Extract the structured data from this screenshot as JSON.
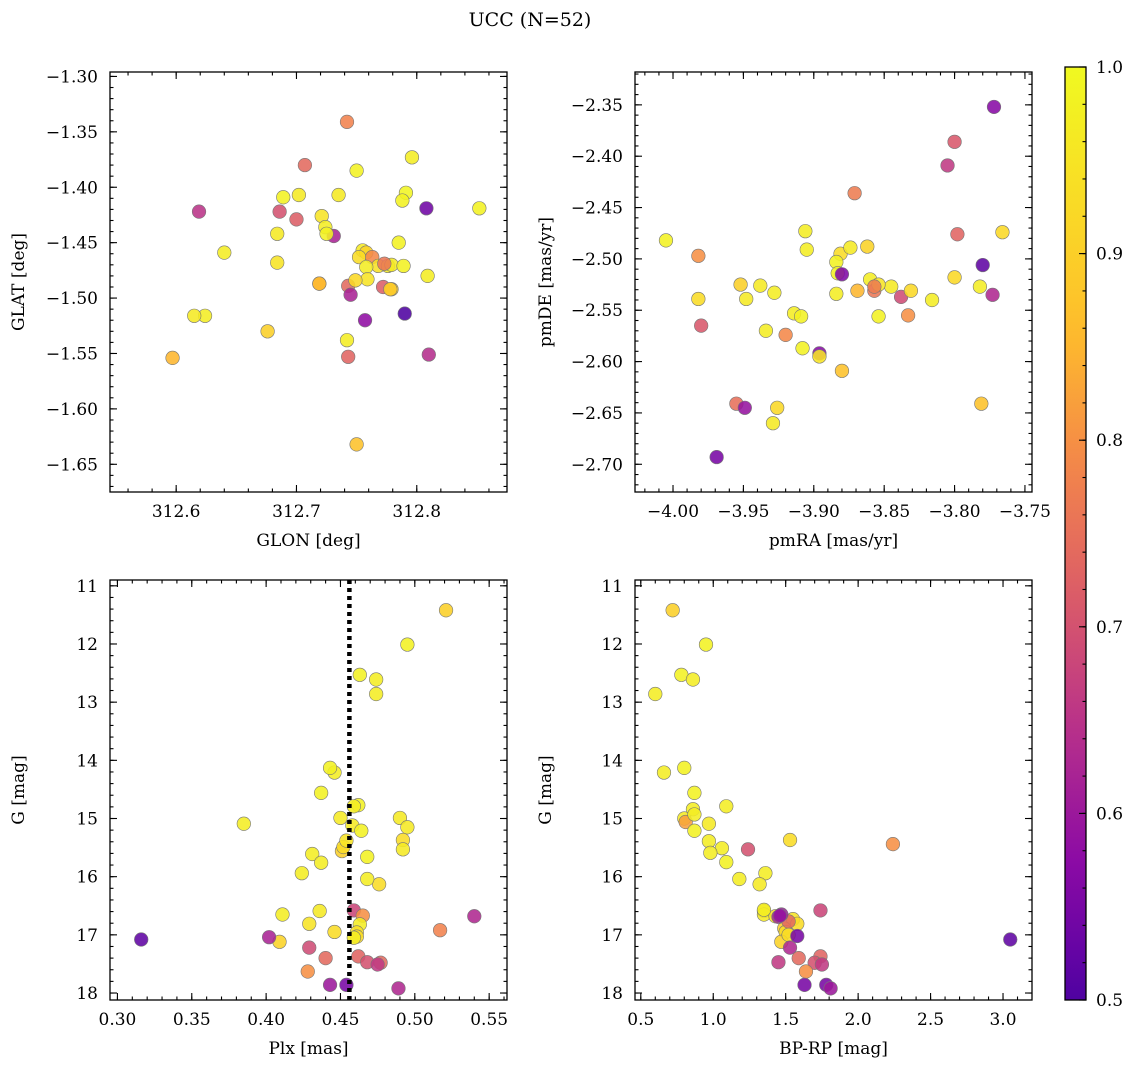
{
  "figure": {
    "title": "UCC (N=52)"
  },
  "colorbar": {
    "colormap": "plasma",
    "range": [
      0.5,
      1.0
    ],
    "ticks": [
      "0.5",
      "0.6",
      "0.7",
      "0.8",
      "0.9",
      "1.0"
    ]
  },
  "chart_data": [
    {
      "type": "scatter",
      "xlabel": "GLON [deg]",
      "ylabel": "GLAT [deg]",
      "xlim": [
        312.545,
        312.875
      ],
      "ylim": [
        -1.675,
        -1.296
      ],
      "xticks": [
        "312.6",
        "312.7",
        "312.8"
      ],
      "yticks": [
        "-1.30",
        "-1.35",
        "-1.40",
        "-1.45",
        "-1.50",
        "-1.55",
        "-1.60",
        "-1.65"
      ],
      "x": [
        312.742,
        312.707,
        312.796,
        312.791,
        312.852,
        312.619,
        312.689,
        312.702,
        312.75,
        312.735,
        312.731,
        312.686,
        312.7,
        312.721,
        312.724,
        312.725,
        312.755,
        312.758,
        312.752,
        312.763,
        312.768,
        312.776,
        312.779,
        312.789,
        312.772,
        312.758,
        312.759,
        312.684,
        312.64,
        312.684,
        312.624,
        312.676,
        312.719,
        312.743,
        312.779,
        312.785,
        312.788,
        312.809,
        312.808,
        312.79,
        312.745,
        312.757,
        312.773,
        312.719,
        312.742,
        312.75,
        312.597,
        312.615,
        312.778,
        312.749,
        312.743,
        312.81
      ],
      "y": [
        -1.341,
        -1.38,
        -1.373,
        -1.405,
        -1.419,
        -1.422,
        -1.409,
        -1.407,
        -1.385,
        -1.407,
        -1.444,
        -1.422,
        -1.429,
        -1.426,
        -1.436,
        -1.442,
        -1.457,
        -1.459,
        -1.463,
        -1.463,
        -1.471,
        -1.471,
        -1.47,
        -1.471,
        -1.49,
        -1.472,
        -1.483,
        -1.442,
        -1.459,
        -1.468,
        -1.516,
        -1.53,
        -1.487,
        -1.489,
        -1.492,
        -1.45,
        -1.412,
        -1.48,
        -1.419,
        -1.514,
        -1.497,
        -1.52,
        -1.469,
        -1.487,
        -1.538,
        -1.632,
        -1.554,
        -1.516,
        -1.492,
        -1.484,
        -1.553,
        -1.551
      ],
      "c": [
        0.78,
        0.74,
        0.97,
        0.99,
        0.98,
        0.65,
        0.98,
        0.96,
        0.98,
        0.96,
        0.62,
        0.7,
        0.72,
        0.95,
        0.97,
        0.98,
        0.96,
        0.91,
        0.93,
        0.79,
        0.94,
        0.97,
        0.96,
        0.98,
        0.72,
        0.97,
        0.95,
        0.96,
        0.97,
        0.95,
        0.97,
        0.9,
        0.88,
        0.74,
        0.9,
        0.98,
        0.98,
        0.97,
        0.54,
        0.5,
        0.62,
        0.58,
        0.76,
        0.85,
        0.97,
        0.87,
        0.85,
        0.96,
        0.89,
        0.92,
        0.73,
        0.64
      ]
    },
    {
      "type": "scatter",
      "xlabel": "pmRA [mas/yr]",
      "ylabel": "pmDE [mas/yr]",
      "xlim": [
        -4.027,
        -3.745
      ],
      "ylim": [
        -2.727,
        -2.318
      ],
      "xticks": [
        "-4.00",
        "-3.95",
        "-3.90",
        "-3.85",
        "-3.80",
        "-3.75"
      ],
      "yticks": [
        "-2.35",
        "-2.40",
        "-2.45",
        "-2.50",
        "-2.55",
        "-2.60",
        "-2.65",
        "-2.70"
      ],
      "x": [
        -3.772,
        -3.8,
        -3.805,
        -3.871,
        -3.798,
        -4.005,
        -3.766,
        -3.982,
        -3.906,
        -3.905,
        -3.881,
        -3.874,
        -3.884,
        -3.862,
        -3.883,
        -3.88,
        -3.86,
        -3.845,
        -3.857,
        -3.854,
        -3.838,
        -3.833,
        -3.831,
        -3.816,
        -3.8,
        -3.78,
        -3.782,
        -3.773,
        -3.982,
        -3.98,
        -3.952,
        -3.948,
        -3.938,
        -3.928,
        -3.914,
        -3.909,
        -3.884,
        -3.854,
        -3.92,
        -3.934,
        -3.908,
        -3.896,
        -3.896,
        -3.88,
        -3.955,
        -3.926,
        -3.929,
        -3.949,
        -3.969,
        -3.781,
        -3.869,
        -3.857
      ],
      "y": [
        -2.352,
        -2.386,
        -2.409,
        -2.436,
        -2.476,
        -2.482,
        -2.474,
        -2.497,
        -2.473,
        -2.491,
        -2.495,
        -2.489,
        -2.503,
        -2.488,
        -2.514,
        -2.515,
        -2.52,
        -2.527,
        -2.531,
        -2.525,
        -2.537,
        -2.555,
        -2.531,
        -2.54,
        -2.518,
        -2.506,
        -2.527,
        -2.535,
        -2.539,
        -2.565,
        -2.525,
        -2.539,
        -2.526,
        -2.533,
        -2.553,
        -2.556,
        -2.534,
        -2.556,
        -2.574,
        -2.57,
        -2.587,
        -2.592,
        -2.595,
        -2.609,
        -2.641,
        -2.645,
        -2.66,
        -2.645,
        -2.693,
        -2.641,
        -2.531,
        -2.527
      ],
      "c": [
        0.57,
        0.71,
        0.66,
        0.77,
        0.73,
        0.98,
        0.92,
        0.8,
        0.97,
        0.97,
        0.93,
        0.96,
        0.98,
        0.91,
        0.98,
        0.56,
        0.97,
        0.96,
        0.76,
        0.95,
        0.69,
        0.8,
        0.92,
        0.97,
        0.92,
        0.52,
        0.97,
        0.63,
        0.93,
        0.71,
        0.9,
        0.96,
        0.96,
        0.97,
        0.97,
        0.98,
        0.97,
        0.98,
        0.79,
        0.97,
        0.98,
        0.57,
        0.95,
        0.87,
        0.75,
        0.92,
        0.96,
        0.59,
        0.55,
        0.87,
        0.85,
        0.77
      ]
    },
    {
      "type": "scatter",
      "xlabel": "Plx [mas]",
      "ylabel": "G [mag]",
      "xlim": [
        0.295,
        0.562
      ],
      "ylim": [
        18.12,
        10.9
      ],
      "xticks": [
        "0.30",
        "0.35",
        "0.40",
        "0.45",
        "0.50",
        "0.55"
      ],
      "yticks": [
        "11",
        "12",
        "13",
        "14",
        "15",
        "16",
        "17",
        "18"
      ],
      "vline": 0.456,
      "x": [
        0.521,
        0.495,
        0.463,
        0.474,
        0.474,
        0.446,
        0.443,
        0.437,
        0.49,
        0.495,
        0.462,
        0.459,
        0.45,
        0.385,
        0.458,
        0.464,
        0.492,
        0.492,
        0.451,
        0.431,
        0.437,
        0.468,
        0.424,
        0.476,
        0.468,
        0.452,
        0.454,
        0.459,
        0.465,
        0.436,
        0.411,
        0.429,
        0.54,
        0.463,
        0.461,
        0.517,
        0.409,
        0.446,
        0.461,
        0.459,
        0.402,
        0.429,
        0.316,
        0.44,
        0.462,
        0.468,
        0.477,
        0.475,
        0.428,
        0.443,
        0.454,
        0.489
      ],
      "y": [
        11.42,
        12.01,
        12.53,
        12.61,
        12.86,
        14.21,
        14.13,
        14.56,
        14.99,
        15.15,
        14.77,
        14.79,
        14.99,
        15.09,
        15.12,
        15.21,
        15.37,
        15.53,
        15.56,
        15.61,
        15.76,
        15.66,
        15.94,
        16.13,
        16.04,
        15.49,
        15.38,
        16.58,
        16.67,
        16.59,
        16.65,
        16.81,
        16.68,
        16.82,
        16.96,
        16.92,
        17.12,
        16.95,
        17.03,
        17.05,
        17.04,
        17.22,
        17.08,
        17.4,
        17.37,
        17.47,
        17.48,
        17.51,
        17.63,
        17.86,
        17.86,
        17.92
      ],
      "c": [
        0.9,
        0.98,
        0.98,
        0.97,
        0.97,
        0.97,
        0.98,
        0.98,
        0.96,
        0.96,
        0.98,
        0.97,
        0.96,
        0.97,
        0.96,
        0.98,
        0.93,
        0.96,
        0.9,
        0.97,
        0.97,
        0.98,
        0.97,
        0.93,
        0.97,
        0.93,
        0.95,
        0.68,
        0.8,
        0.96,
        0.97,
        0.95,
        0.63,
        0.97,
        0.94,
        0.78,
        0.91,
        0.93,
        0.93,
        0.97,
        0.62,
        0.69,
        0.52,
        0.74,
        0.73,
        0.7,
        0.74,
        0.66,
        0.8,
        0.6,
        0.55,
        0.63
      ]
    },
    {
      "type": "scatter",
      "xlabel": "BP-RP [mag]",
      "ylabel": "G [mag]",
      "xlim": [
        0.46,
        3.2
      ],
      "ylim": [
        18.12,
        10.9
      ],
      "xticks": [
        "0.5",
        "1.0",
        "1.5",
        "2.0",
        "2.5",
        "3.0"
      ],
      "yticks": [
        "11",
        "12",
        "13",
        "14",
        "15",
        "16",
        "17",
        "18"
      ],
      "x": [
        0.72,
        0.95,
        0.78,
        0.86,
        0.6,
        0.66,
        0.8,
        0.87,
        0.86,
        1.09,
        0.8,
        0.81,
        0.87,
        0.97,
        0.87,
        0.97,
        1.53,
        1.24,
        1.06,
        0.98,
        1.09,
        1.36,
        1.18,
        2.24,
        1.74,
        1.35,
        1.35,
        1.43,
        1.55,
        1.58,
        1.35,
        1.49,
        1.5,
        1.47,
        1.45,
        1.52,
        1.52,
        1.58,
        1.32,
        1.47,
        1.46,
        1.53,
        3.05,
        1.59,
        1.74,
        1.45,
        1.7,
        1.75,
        1.64,
        1.63,
        1.78,
        1.81
      ],
      "y": [
        11.42,
        12.01,
        12.53,
        12.61,
        12.86,
        14.21,
        14.13,
        14.56,
        14.84,
        14.79,
        15.0,
        15.06,
        14.93,
        15.09,
        15.21,
        15.39,
        15.37,
        15.53,
        15.51,
        15.59,
        15.75,
        15.94,
        16.04,
        15.44,
        16.58,
        16.59,
        16.65,
        16.68,
        16.73,
        16.81,
        16.57,
        16.89,
        16.95,
        17.12,
        16.69,
        16.77,
        17.0,
        17.02,
        16.13,
        16.65,
        16.67,
        17.22,
        17.08,
        17.4,
        17.37,
        17.47,
        17.48,
        17.51,
        17.63,
        17.86,
        17.86,
        17.92
      ],
      "c": [
        0.9,
        0.98,
        0.98,
        0.97,
        0.97,
        0.97,
        0.98,
        0.98,
        0.97,
        0.97,
        0.96,
        0.82,
        0.97,
        0.96,
        0.98,
        0.97,
        0.93,
        0.7,
        0.97,
        0.97,
        0.98,
        0.97,
        0.97,
        0.8,
        0.68,
        0.97,
        0.96,
        0.95,
        0.95,
        0.93,
        0.97,
        0.9,
        0.93,
        0.91,
        0.62,
        0.74,
        0.93,
        0.55,
        0.96,
        0.6,
        0.59,
        0.63,
        0.52,
        0.74,
        0.73,
        0.66,
        0.7,
        0.66,
        0.8,
        0.55,
        0.55,
        0.6
      ]
    }
  ]
}
